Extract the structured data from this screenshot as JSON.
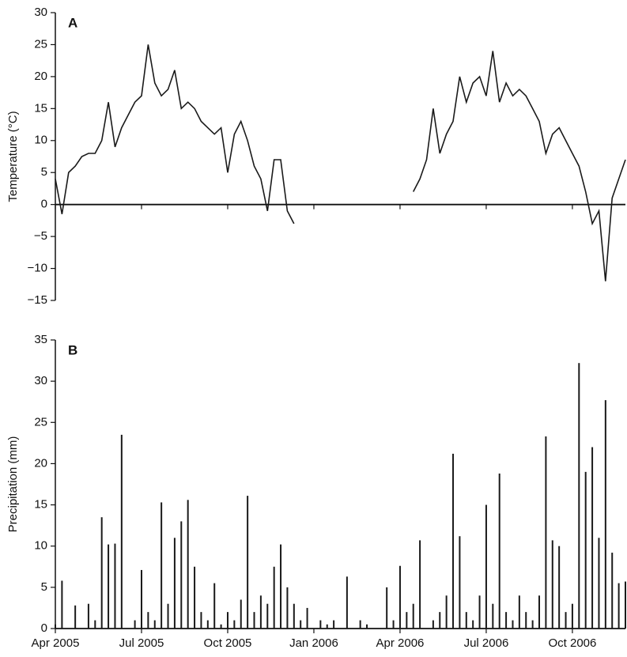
{
  "chart_data": [
    {
      "type": "line",
      "annotation": "A",
      "y_label": "Temperature (°C)",
      "color": "#1a1a1a",
      "ylim": [
        -15,
        30
      ],
      "yticks": [
        {
          "value": -15,
          "label": "−15"
        },
        {
          "value": -10,
          "label": "−10"
        },
        {
          "value": -5,
          "label": "−5"
        },
        0,
        5,
        10,
        15,
        20,
        25,
        30
      ],
      "values": [
        4,
        -1.5,
        5,
        6,
        7.5,
        8,
        8,
        10,
        16,
        9,
        12,
        14,
        16,
        17,
        25,
        19,
        17,
        18,
        21,
        15,
        16,
        15,
        13,
        12,
        11,
        12,
        5,
        11,
        13,
        10,
        6,
        4,
        -1,
        7,
        7,
        -1,
        -3,
        null,
        null,
        null,
        null,
        null,
        null,
        null,
        null,
        null,
        null,
        null,
        null,
        null,
        null,
        null,
        null,
        null,
        2,
        4,
        7,
        15,
        8,
        11,
        13,
        20,
        16,
        19,
        20,
        17,
        24,
        16,
        19,
        17,
        18,
        17,
        15,
        13,
        8,
        11,
        12,
        10,
        8,
        6,
        2,
        -3,
        -1,
        -12,
        1,
        4,
        7
      ]
    },
    {
      "type": "bar",
      "annotation": "B",
      "y_label": "Precipitation (mm)",
      "color": "#1a1a1a",
      "ylim": [
        0,
        35
      ],
      "yticks": [
        0,
        5,
        10,
        15,
        20,
        25,
        30,
        35
      ],
      "categories": [
        "Apr 2005",
        null,
        null,
        null,
        null,
        null,
        null,
        null,
        null,
        null,
        null,
        null,
        null,
        "Jul 2005",
        null,
        null,
        null,
        null,
        null,
        null,
        null,
        null,
        null,
        null,
        null,
        null,
        "Oct 2005",
        null,
        null,
        null,
        null,
        null,
        null,
        null,
        null,
        null,
        null,
        null,
        null,
        "Jan 2006",
        null,
        null,
        null,
        null,
        null,
        null,
        null,
        null,
        null,
        null,
        null,
        null,
        "Apr 2006",
        null,
        null,
        null,
        null,
        null,
        null,
        null,
        null,
        null,
        null,
        null,
        null,
        "Jul 2006",
        null,
        null,
        null,
        null,
        null,
        null,
        null,
        null,
        null,
        null,
        null,
        null,
        "Oct 2006",
        null,
        null,
        null,
        null,
        null,
        null,
        null,
        null
      ],
      "values": [
        0.5,
        5.8,
        0,
        2.8,
        0,
        3,
        1,
        13.5,
        10.2,
        10.3,
        23.5,
        0,
        1,
        7.1,
        2,
        1,
        15.3,
        3,
        11,
        13,
        15.6,
        7.5,
        2,
        1,
        5.5,
        0.5,
        2,
        1,
        3.5,
        16.1,
        2,
        4,
        3,
        7.5,
        10.2,
        5,
        3,
        1,
        2.5,
        0,
        1,
        0.5,
        1,
        0,
        6.3,
        0,
        1,
        0.5,
        0,
        0,
        5,
        1,
        7.6,
        2,
        3,
        10.7,
        0,
        1,
        2,
        4,
        21.2,
        11.2,
        2,
        1,
        4,
        15,
        3,
        18.8,
        2,
        1,
        4,
        2,
        1,
        4,
        23.3,
        10.7,
        10,
        2,
        3,
        32.2,
        19,
        22,
        11,
        27.7,
        9.2,
        5.5,
        5.7
      ]
    }
  ]
}
